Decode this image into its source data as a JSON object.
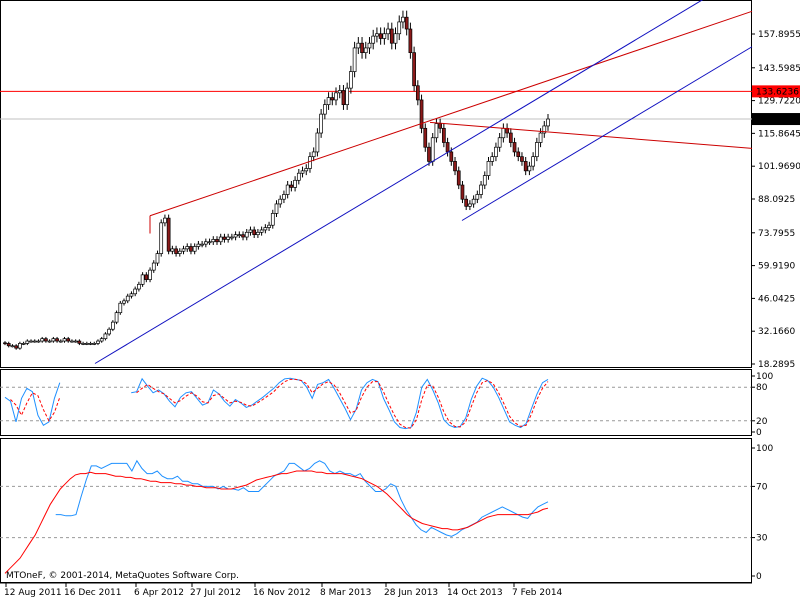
{
  "colors": {
    "background": "#ffffff",
    "axis": "#000000",
    "bull_candle": "#ffffff",
    "bear_candle": "#8b1a1a",
    "wick": "#000000",
    "trend_red": "#cc0000",
    "trend_blue": "#1010c0",
    "hline_red": "#ff0000",
    "current_price_line": "#c0c0c0",
    "stoch_main": "#1e90ff",
    "stoch_signal": "#ff0000",
    "rsi_line": "#1e90ff",
    "rsi_signal": "#ff0000",
    "level_line": "#999999"
  },
  "watermark": "MTOneF, © 2001-2014, MetaQuotes Software Corp.",
  "chart_data": [
    {
      "type": "candlestick",
      "panel": "price",
      "ylim": [
        18.2895,
        170
      ],
      "y_ticks": [
        157.8955,
        143.5985,
        129.722,
        115.8645,
        101.969,
        88.0925,
        73.7955,
        59.919,
        46.0425,
        32.166,
        18.2895
      ],
      "y_tick_labels": [
        "157.8955",
        "143.5985",
        "129.7220",
        "115.8645",
        "101.9690",
        "88.0925",
        "73.7955",
        "59.9190",
        "46.0425",
        "32.1660",
        "18.2895"
      ],
      "x_labels": [
        "12 Aug 2011",
        "16 Dec 2011",
        "6 Apr 2012",
        "27 Jul 2012",
        "16 Nov 2012",
        "8 Mar 2013",
        "28 Jun 2013",
        "14 Oct 2013",
        "7 Feb 2014"
      ],
      "highlighted_levels": [
        {
          "value": 133.6236,
          "label": "133.6236",
          "color": "#ff0000"
        },
        {
          "value": 121.92,
          "label": "121.9200",
          "color": "#000000"
        }
      ],
      "close": [
        27,
        26,
        26,
        25,
        27,
        27,
        28,
        28,
        28,
        28,
        29,
        28,
        28,
        29,
        28,
        28,
        29,
        28,
        28,
        28,
        27,
        27,
        27,
        27,
        27,
        28,
        29,
        31,
        33,
        36,
        40,
        44,
        45,
        47,
        48,
        50,
        52,
        56,
        54,
        58,
        61,
        65,
        78,
        80,
        66,
        67,
        65,
        66,
        67,
        68,
        66,
        68,
        69,
        69,
        70,
        70,
        71,
        70,
        72,
        71,
        72,
        72,
        73,
        73,
        72,
        74,
        75,
        73,
        74,
        75,
        76,
        77,
        82,
        86,
        88,
        90,
        94,
        93,
        96,
        99,
        100,
        101,
        106,
        108,
        116,
        124,
        128,
        131,
        130,
        133,
        134,
        128,
        135,
        142,
        152,
        154,
        150,
        152,
        154,
        157,
        158,
        156,
        158,
        160,
        154,
        158,
        163,
        165,
        160,
        150,
        136,
        130,
        118,
        110,
        104,
        114,
        120,
        118,
        112,
        108,
        104,
        100,
        94,
        88,
        85,
        86,
        88,
        90,
        94,
        98,
        104,
        106,
        110,
        114,
        118,
        116,
        112,
        108,
        106,
        104,
        100,
        102,
        106,
        112,
        116,
        119,
        121.92
      ]
    },
    {
      "type": "line",
      "panel": "stochastic",
      "ylim": [
        0,
        100
      ],
      "levels": [
        80,
        20
      ],
      "y_tick_labels": [
        "100",
        "80",
        "20",
        "0"
      ],
      "series": [
        {
          "values": [
            62,
            55,
            18,
            60,
            78,
            72,
            30,
            12,
            18,
            60,
            88,
            null,
            null,
            null,
            null,
            null,
            null,
            null,
            null,
            null,
            null,
            null,
            null,
            70,
            72,
            95,
            82,
            70,
            75,
            68,
            55,
            45,
            62,
            70,
            72,
            60,
            48,
            52,
            75,
            68,
            55,
            46,
            58,
            52,
            44,
            48,
            55,
            62,
            70,
            78,
            88,
            95,
            96,
            94,
            92,
            80,
            60,
            85,
            88,
            94,
            78,
            60,
            42,
            22,
            40,
            75,
            88,
            94,
            90,
            60,
            40,
            18,
            8,
            6,
            8,
            35,
            80,
            94,
            75,
            52,
            22,
            12,
            8,
            10,
            25,
            58,
            82,
            96,
            92,
            80,
            62,
            40,
            18,
            12,
            8,
            15,
            42,
            68,
            88,
            94
          ]
        },
        {
          "values": [
            null,
            58,
            48,
            30,
            52,
            70,
            65,
            40,
            20,
            35,
            62,
            null,
            null,
            null,
            null,
            null,
            null,
            null,
            null,
            null,
            null,
            null,
            null,
            null,
            70,
            78,
            85,
            78,
            72,
            68,
            60,
            52,
            56,
            64,
            70,
            64,
            54,
            52,
            65,
            68,
            60,
            52,
            55,
            53,
            48,
            46,
            52,
            58,
            65,
            72,
            82,
            90,
            94,
            94,
            92,
            86,
            70,
            78,
            86,
            90,
            84,
            70,
            52,
            34,
            38,
            62,
            80,
            90,
            90,
            72,
            50,
            30,
            14,
            8,
            7,
            22,
            58,
            84,
            82,
            62,
            36,
            18,
            10,
            9,
            18,
            45,
            70,
            88,
            92,
            86,
            70,
            50,
            28,
            16,
            10,
            12,
            32,
            58,
            78,
            90
          ]
        }
      ]
    },
    {
      "type": "line",
      "panel": "rsi",
      "ylim": [
        0,
        100
      ],
      "levels": [
        70,
        30
      ],
      "y_tick_labels": [
        "100",
        "70",
        "30",
        "0"
      ],
      "series": [
        {
          "values": [
            null,
            null,
            null,
            null,
            null,
            null,
            null,
            null,
            null,
            null,
            48,
            48,
            47,
            47,
            48,
            62,
            75,
            86,
            86,
            84,
            86,
            88,
            88,
            88,
            88,
            82,
            90,
            84,
            80,
            80,
            82,
            78,
            76,
            76,
            78,
            74,
            74,
            72,
            72,
            70,
            70,
            70,
            68,
            70,
            68,
            68,
            67,
            69,
            66,
            66,
            66,
            70,
            74,
            78,
            80,
            82,
            88,
            88,
            85,
            82,
            84,
            88,
            90,
            88,
            82,
            80,
            82,
            80,
            80,
            78,
            80,
            74,
            70,
            66,
            66,
            68,
            72,
            70,
            60,
            52,
            46,
            40,
            36,
            34,
            38,
            36,
            34,
            32,
            31,
            33,
            36,
            38,
            40,
            42,
            46,
            48,
            50,
            52,
            54,
            52,
            50,
            48,
            46,
            45,
            50,
            54,
            56,
            58
          ]
        },
        {
          "values": [
            2,
            6,
            10,
            14,
            20,
            26,
            32,
            40,
            48,
            56,
            62,
            68,
            72,
            76,
            79,
            80,
            80,
            81,
            80,
            80,
            80,
            79,
            78,
            78,
            77,
            77,
            76,
            76,
            75,
            74,
            74,
            73,
            73,
            73,
            72,
            72,
            71,
            71,
            70,
            70,
            69,
            69,
            69,
            68,
            68,
            68,
            69,
            70,
            71,
            73,
            75,
            76,
            77,
            78,
            79,
            80,
            80,
            81,
            82,
            82,
            82,
            82,
            81,
            81,
            80,
            80,
            80,
            80,
            79,
            78,
            77,
            76,
            74,
            72,
            70,
            67,
            64,
            60,
            56,
            52,
            48,
            45,
            43,
            41,
            40,
            39,
            38,
            37,
            37,
            36,
            36,
            37,
            38,
            40,
            42,
            44,
            46,
            47,
            48,
            48,
            48,
            48,
            48,
            48,
            48,
            49,
            50,
            52,
            53
          ]
        }
      ]
    }
  ],
  "drawn_lines": {
    "price_axis_range": [
      18.2895,
      170
    ],
    "note_units": "price"
  }
}
